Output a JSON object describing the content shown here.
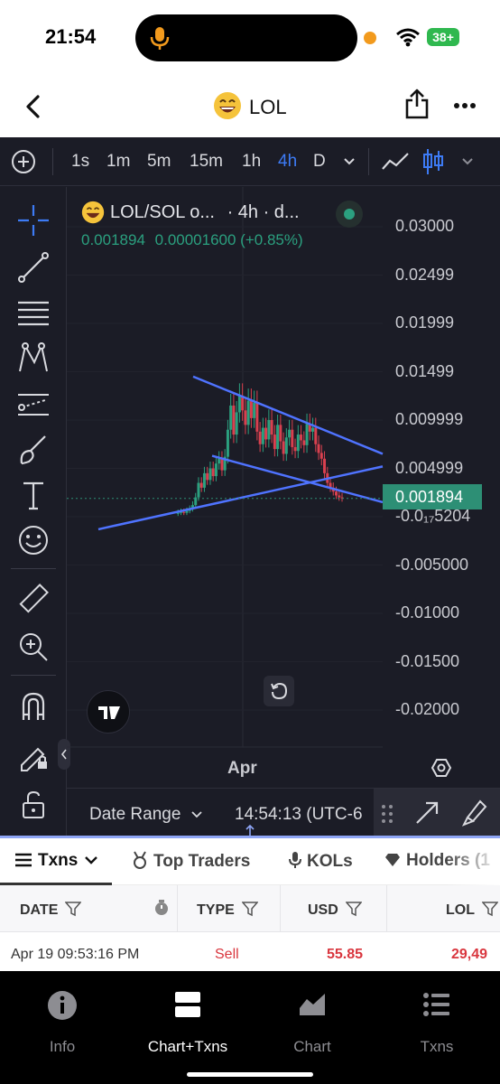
{
  "status_bar": {
    "time": "21:54",
    "battery": "38+"
  },
  "header": {
    "title": "LOL",
    "emoji": "😄"
  },
  "chart_toolbar": {
    "timeframes": [
      "1s",
      "1m",
      "5m",
      "15m",
      "1h",
      "4h",
      "D"
    ],
    "active_timeframe": "4h"
  },
  "chart_legend": {
    "title": "LOL/SOL o...",
    "suffix": "· 4h · d...",
    "price": "0.001894",
    "change": "0.00001600 (+0.85%)"
  },
  "chart_data": {
    "type": "line",
    "title": "LOL/SOL o... · 4h · d...",
    "xlabel": "",
    "ylabel": "",
    "x_tick_labels": [
      "Apr"
    ],
    "y_tick_labels": [
      "0.03000",
      "0.02499",
      "0.01999",
      "0.01499",
      "0.009999",
      "0.004999",
      "-0.0₁₇5204",
      "-0.005000",
      "-0.01000",
      "-0.01500",
      "-0.02000"
    ],
    "ylim": [
      -0.0225,
      0.0315
    ],
    "last_price": 0.001894,
    "series": [
      {
        "values": [
          0.0003,
          0.0004,
          0.0005,
          0.0004,
          0.0006,
          0.0008,
          0.0012,
          0.002,
          0.0035,
          0.003,
          0.0045,
          0.0038,
          0.005,
          0.0042,
          0.0055,
          0.006,
          0.0048,
          0.0062,
          0.009,
          0.0115,
          0.0085,
          0.0108,
          0.0125,
          0.011,
          0.0095,
          0.012,
          0.0102,
          0.0118,
          0.0088,
          0.0075,
          0.0092,
          0.008,
          0.01,
          0.0085,
          0.007,
          0.0095,
          0.0078,
          0.0065,
          0.0082,
          0.009,
          0.0072,
          0.0068,
          0.0085,
          0.0079,
          0.0074,
          0.0096,
          0.0088,
          0.0092,
          0.0075,
          0.0066,
          0.006,
          0.0045,
          0.0035,
          0.003,
          0.0026,
          0.0022,
          0.002,
          0.0019
        ]
      }
    ],
    "trendlines": [
      {
        "from": [
          0.4,
          0.0145
        ],
        "to": [
          1.0,
          0.0065
        ]
      },
      {
        "from": [
          0.46,
          0.0063
        ],
        "to": [
          1.0,
          0.0015
        ]
      },
      {
        "from": [
          0.1,
          -0.0013
        ],
        "to": [
          1.0,
          0.0052
        ]
      }
    ]
  },
  "chart_bottom": {
    "date_range_label": "Date Range",
    "clock": "14:54:13 (UTC-6"
  },
  "tabs": [
    {
      "label": "Txns",
      "active": true
    },
    {
      "label": "Top Traders",
      "active": false
    },
    {
      "label": "KOLs",
      "active": false
    },
    {
      "label": "Holders (1",
      "active": false
    }
  ],
  "table": {
    "headers": [
      "DATE",
      "TYPE",
      "USD",
      "LOL"
    ],
    "rows": [
      {
        "date": "Apr 19 09:53:16 PM",
        "type": "Sell",
        "usd": "55.85",
        "lol": "29,49"
      }
    ]
  },
  "tabbar": [
    {
      "label": "Info",
      "icon": "info-icon",
      "active": false
    },
    {
      "label": "Chart+Txns",
      "icon": "split-view-icon",
      "active": true
    },
    {
      "label": "Chart",
      "icon": "area-chart-icon",
      "active": false
    },
    {
      "label": "Txns",
      "icon": "list-icon",
      "active": false
    }
  ],
  "colors": {
    "chart_bg": "#1b1c26",
    "accent_blue": "#3d7bf5",
    "trendline": "#4f73ff",
    "up": "#2ba07f",
    "down": "#d9404f",
    "sell": "#d9363e"
  }
}
